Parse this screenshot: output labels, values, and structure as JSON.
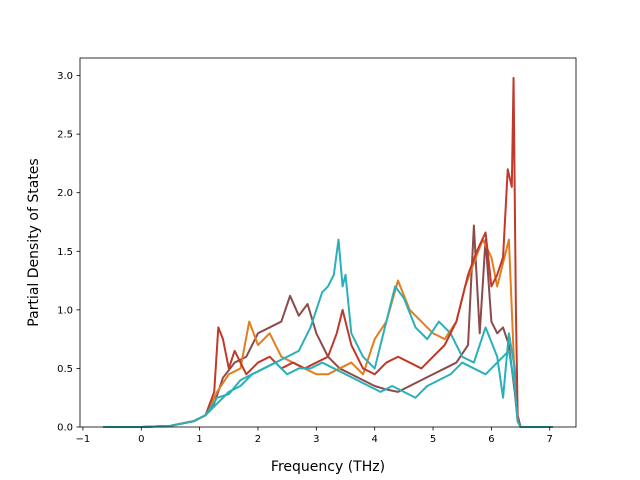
{
  "chart_data": {
    "type": "line",
    "title": "",
    "xlabel": "Frequency (THz)",
    "ylabel": "Partial Density of States",
    "xlim": [
      -1.05,
      7.45
    ],
    "ylim": [
      0.0,
      3.15
    ],
    "xticks": [
      -1,
      0,
      1,
      2,
      3,
      4,
      5,
      6,
      7
    ],
    "yticks": [
      0.0,
      0.5,
      1.0,
      1.5,
      2.0,
      2.5,
      3.0
    ],
    "xtick_labels": [
      "−1",
      "0",
      "1",
      "2",
      "3",
      "4",
      "5",
      "6",
      "7"
    ],
    "ytick_labels": [
      "0.0",
      "0.5",
      "1.0",
      "1.5",
      "2.0",
      "2.5",
      "3.0"
    ],
    "grid": false,
    "legend": "none",
    "series": [
      {
        "color": "#8c4b4b",
        "x": [
          -0.65,
          0.0,
          0.5,
          0.9,
          1.1,
          1.25,
          1.4,
          1.6,
          1.8,
          2.0,
          2.2,
          2.4,
          2.55,
          2.7,
          2.85,
          3.0,
          3.2,
          3.4,
          3.6,
          3.8,
          4.0,
          4.2,
          4.4,
          4.6,
          4.8,
          5.0,
          5.2,
          5.4,
          5.6,
          5.7,
          5.8,
          5.9,
          6.0,
          6.1,
          6.2,
          6.3,
          6.4,
          6.45,
          6.5,
          7.05
        ],
        "y": [
          0.0,
          0.0,
          0.01,
          0.05,
          0.1,
          0.2,
          0.42,
          0.55,
          0.6,
          0.8,
          0.85,
          0.9,
          1.12,
          0.95,
          1.05,
          0.8,
          0.6,
          0.5,
          0.45,
          0.4,
          0.35,
          0.32,
          0.3,
          0.35,
          0.4,
          0.45,
          0.5,
          0.55,
          0.7,
          1.72,
          0.8,
          1.6,
          0.9,
          0.8,
          0.85,
          0.7,
          0.3,
          0.05,
          0.0,
          0.0
        ]
      },
      {
        "color": "#e37d1d",
        "x": [
          -0.65,
          0.0,
          0.5,
          0.9,
          1.1,
          1.3,
          1.5,
          1.7,
          1.85,
          2.0,
          2.2,
          2.4,
          2.6,
          2.8,
          3.0,
          3.2,
          3.4,
          3.6,
          3.8,
          4.0,
          4.2,
          4.4,
          4.6,
          4.8,
          5.0,
          5.2,
          5.4,
          5.55,
          5.7,
          5.85,
          6.0,
          6.1,
          6.2,
          6.3,
          6.4,
          6.45,
          6.5,
          7.05
        ],
        "y": [
          0.0,
          0.0,
          0.01,
          0.05,
          0.1,
          0.3,
          0.45,
          0.5,
          0.9,
          0.7,
          0.8,
          0.6,
          0.55,
          0.5,
          0.45,
          0.45,
          0.5,
          0.55,
          0.45,
          0.75,
          0.9,
          1.25,
          1.0,
          0.9,
          0.8,
          0.75,
          0.9,
          1.2,
          1.4,
          1.6,
          1.45,
          1.2,
          1.4,
          1.6,
          0.4,
          0.05,
          0.0,
          0.0
        ]
      },
      {
        "color": "#2ab0b8",
        "x": [
          -0.65,
          0.0,
          0.5,
          0.9,
          1.1,
          1.3,
          1.5,
          1.7,
          1.9,
          2.1,
          2.3,
          2.5,
          2.7,
          2.9,
          3.0,
          3.1,
          3.2,
          3.3,
          3.38,
          3.45,
          3.5,
          3.6,
          3.8,
          4.0,
          4.2,
          4.35,
          4.5,
          4.7,
          4.9,
          5.1,
          5.3,
          5.5,
          5.7,
          5.9,
          6.1,
          6.2,
          6.3,
          6.4,
          6.45,
          6.5,
          7.05
        ],
        "y": [
          0.0,
          0.0,
          0.01,
          0.05,
          0.1,
          0.2,
          0.3,
          0.35,
          0.45,
          0.5,
          0.55,
          0.6,
          0.65,
          0.85,
          1.0,
          1.15,
          1.2,
          1.3,
          1.6,
          1.2,
          1.3,
          0.8,
          0.6,
          0.5,
          0.9,
          1.2,
          1.1,
          0.85,
          0.75,
          0.9,
          0.8,
          0.6,
          0.55,
          0.85,
          0.6,
          0.25,
          0.8,
          0.5,
          0.05,
          0.0,
          0.0
        ]
      },
      {
        "color": "#c0392b",
        "x": [
          -0.65,
          0.0,
          0.5,
          0.9,
          1.1,
          1.25,
          1.32,
          1.4,
          1.5,
          1.6,
          1.8,
          2.0,
          2.2,
          2.4,
          2.6,
          2.8,
          3.0,
          3.2,
          3.35,
          3.45,
          3.6,
          3.8,
          4.0,
          4.2,
          4.4,
          4.6,
          4.8,
          5.0,
          5.2,
          5.4,
          5.6,
          5.75,
          5.9,
          6.0,
          6.1,
          6.2,
          6.28,
          6.35,
          6.38,
          6.42,
          6.45,
          6.5,
          7.05
        ],
        "y": [
          0.0,
          0.0,
          0.01,
          0.05,
          0.1,
          0.3,
          0.85,
          0.75,
          0.5,
          0.65,
          0.45,
          0.55,
          0.6,
          0.5,
          0.55,
          0.5,
          0.55,
          0.6,
          0.8,
          1.0,
          0.7,
          0.5,
          0.45,
          0.55,
          0.6,
          0.55,
          0.5,
          0.6,
          0.7,
          0.9,
          1.3,
          1.5,
          1.66,
          1.2,
          1.3,
          1.45,
          2.2,
          2.05,
          2.98,
          1.0,
          0.1,
          0.0,
          0.0
        ]
      },
      {
        "color": "#2ab0b8",
        "x": [
          -0.65,
          0.0,
          0.5,
          0.9,
          1.1,
          1.3,
          1.5,
          1.7,
          1.9,
          2.1,
          2.3,
          2.5,
          2.7,
          2.9,
          3.1,
          3.3,
          3.5,
          3.7,
          3.9,
          4.1,
          4.3,
          4.5,
          4.7,
          4.9,
          5.1,
          5.3,
          5.5,
          5.7,
          5.9,
          6.0,
          6.1,
          6.2,
          6.3,
          6.4,
          6.45,
          6.5,
          7.05
        ],
        "y": [
          0.0,
          0.0,
          0.01,
          0.05,
          0.1,
          0.25,
          0.28,
          0.4,
          0.45,
          0.5,
          0.55,
          0.45,
          0.5,
          0.5,
          0.55,
          0.5,
          0.45,
          0.4,
          0.35,
          0.3,
          0.35,
          0.3,
          0.25,
          0.35,
          0.4,
          0.45,
          0.55,
          0.5,
          0.45,
          0.5,
          0.55,
          0.6,
          0.65,
          0.35,
          0.05,
          0.0,
          0.0
        ]
      }
    ]
  }
}
